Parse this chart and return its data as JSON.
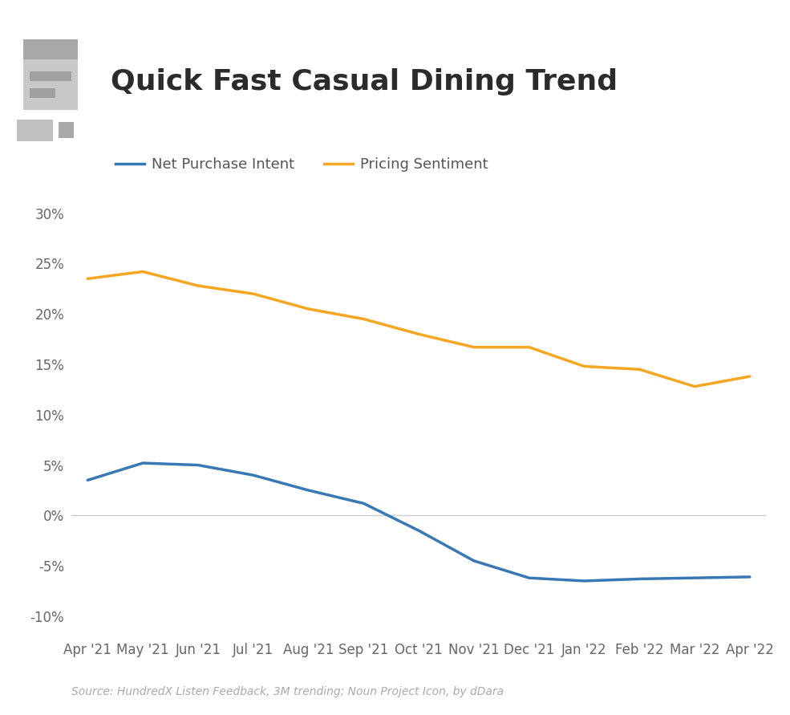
{
  "title": "Quick Fast Casual Dining Trend",
  "x_labels": [
    "Apr '21",
    "May '21",
    "Jun '21",
    "Jul '21",
    "Aug '21",
    "Sep '21",
    "Oct '21",
    "Nov '21",
    "Dec '21",
    "Jan '22",
    "Feb '22",
    "Mar '22",
    "Apr '22"
  ],
  "net_purchase_intent": [
    3.5,
    5.2,
    5.0,
    4.0,
    2.5,
    1.2,
    -1.5,
    -4.5,
    -6.2,
    -6.5,
    -6.3,
    -6.2,
    -6.1
  ],
  "pricing_sentiment": [
    23.5,
    24.2,
    22.8,
    22.0,
    20.5,
    19.5,
    18.0,
    16.7,
    16.7,
    14.8,
    14.5,
    12.8,
    13.8
  ],
  "npi_color": "#3878b4",
  "ps_color": "#f5a623",
  "background_color": "#ffffff",
  "title_color": "#2b2b2b",
  "legend_color": "#555555",
  "zero_line_color": "#cccccc",
  "source_text": "Source: HundredX Listen Feedback, 3M trending; Noun Project Icon, by dDara",
  "ylim": [
    -12,
    32
  ],
  "yticks": [
    -10,
    -5,
    0,
    5,
    10,
    15,
    20,
    25,
    30
  ],
  "title_fontsize": 26,
  "legend_fontsize": 13,
  "tick_fontsize": 12,
  "source_fontsize": 10,
  "line_width": 2.5
}
